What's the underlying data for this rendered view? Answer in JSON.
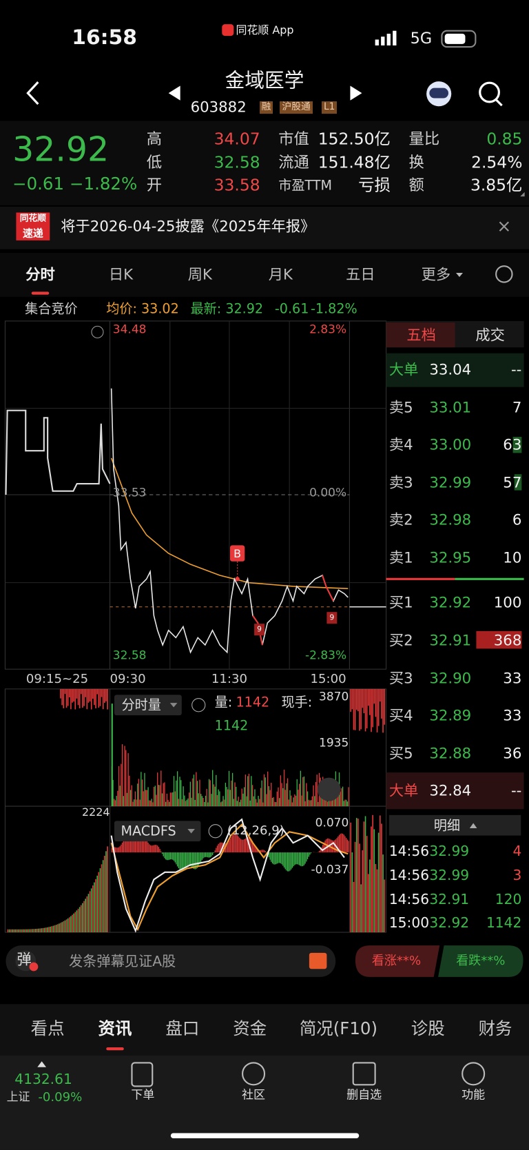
{
  "status": {
    "time": "16:58",
    "app": "同花顺 App",
    "network": "5G"
  },
  "header": {
    "title": "金域医学",
    "code": "603882",
    "tags": [
      "融",
      "沪股通",
      "L1"
    ]
  },
  "quote": {
    "price": "32.92",
    "change": "−0.61",
    "pct": "−1.82%",
    "stats": [
      [
        [
          "高",
          "34.07"
        ],
        [
          "低",
          "32.58"
        ],
        [
          "开",
          "33.58"
        ]
      ],
      [
        [
          "市值",
          "152.50亿"
        ],
        [
          "流通",
          "151.48亿"
        ],
        [
          "市盈TTM",
          "亏损"
        ]
      ],
      [
        [
          "量比",
          "0.85"
        ],
        [
          "换",
          "2.54%"
        ],
        [
          "额",
          "3.85亿"
        ]
      ]
    ]
  },
  "notice": {
    "badge": [
      "同花顺",
      "速递"
    ],
    "text": "将于2026-04-25披露《2025年年报》"
  },
  "tabs": [
    "分时",
    "日K",
    "周K",
    "月K",
    "五日",
    "更多"
  ],
  "info": {
    "auction": "集合竞价",
    "avg": "均价: 33.02",
    "latest": "最新: 32.92",
    "change": "-0.61",
    "pct": "-1.82%"
  },
  "price_chart": {
    "top_price": "34.48",
    "top_pct": "2.83%",
    "mid_price": "33.53",
    "mid_pct": "0.00%",
    "bottom_price": "32.58",
    "bottom_pct": "-2.83%",
    "x_labels": [
      "09:15~25",
      "09:30",
      "11:30",
      "15:00"
    ],
    "markers": [
      "B",
      "9",
      "9"
    ]
  },
  "volume_chart": {
    "title": "分时量",
    "volume_label": "量:",
    "volume": "1142",
    "hand_label": "现手:",
    "hand": "1142",
    "ticks": [
      "3870",
      "1935"
    ],
    "left_tick": "2224"
  },
  "macd_chart": {
    "title": "MACDFS",
    "params": "(12,26,9)",
    "ticks": [
      "0.070",
      "-0.037"
    ]
  },
  "orderbook": {
    "tabs": [
      "五档",
      "成交"
    ],
    "rows": [
      [
        "大单",
        "33.04",
        "--"
      ],
      [
        "卖5",
        "33.01",
        "7"
      ],
      [
        "卖4",
        "33.00",
        "63"
      ],
      [
        "卖3",
        "32.99",
        "57"
      ],
      [
        "卖2",
        "32.98",
        "6"
      ],
      [
        "卖1",
        "32.95",
        "10"
      ],
      [
        "买1",
        "32.92",
        "100"
      ],
      [
        "买2",
        "32.91",
        "368"
      ],
      [
        "买3",
        "32.90",
        "33"
      ],
      [
        "买4",
        "32.89",
        "33"
      ],
      [
        "买5",
        "32.88",
        "36"
      ],
      [
        "大单",
        "32.84",
        "--"
      ]
    ],
    "detail_title": "明细",
    "trades": [
      [
        "14:56",
        "32.99",
        "4"
      ],
      [
        "14:56",
        "32.99",
        "3"
      ],
      [
        "14:56",
        "32.91",
        "120"
      ],
      [
        "15:00",
        "32.92",
        "1142"
      ]
    ]
  },
  "danmaku": {
    "icon": "弹",
    "placeholder": "发条弹幕见证A股",
    "up": "看涨**%",
    "down": "看跌**%"
  },
  "bottom_tabs": [
    "看点",
    "资讯",
    "盘口",
    "资金",
    "简况(F10)",
    "诊股",
    "财务"
  ],
  "nav": {
    "index_value": "4132.61",
    "index_name": "上证",
    "index_pct": "-0.09%",
    "items": [
      "下单",
      "社区",
      "删自选",
      "功能"
    ]
  }
}
